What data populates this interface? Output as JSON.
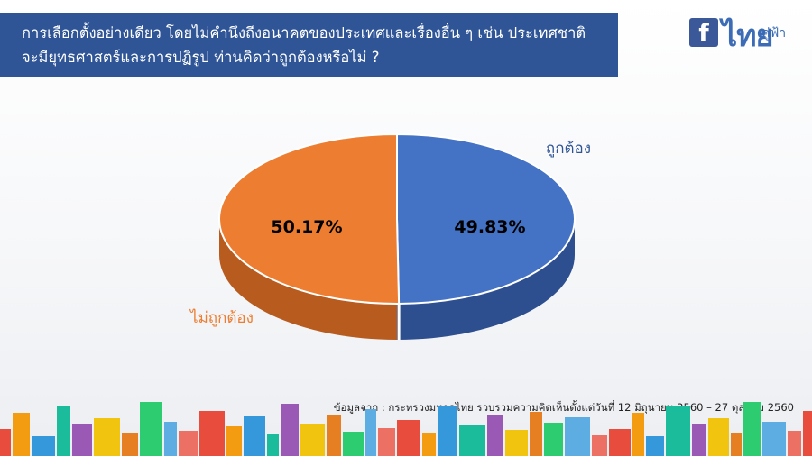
{
  "question": {
    "line1": "การเลือกตั้งอย่างเดียว โดยไม่คำนึงถึงอนาคตของประเทศและเรื่องอื่น ๆ เช่น ประเทศชาติ",
    "line2": "จะมียุทธศาสตร์และการปฏิรูป  ท่านคิดว่าถูกต้องหรือไม่ ?"
  },
  "logo": {
    "fb": "f",
    "name": "ไทย",
    "sub": "คู่ฟ้า"
  },
  "chart_data": {
    "type": "pie",
    "series": [
      {
        "name": "ถูกต้อง",
        "value": 49.83,
        "label": "49.83%",
        "color": "#4472c4",
        "side_color": "#2e4f8f"
      },
      {
        "name": "ไม่ถูกต้อง",
        "value": 50.17,
        "label": "50.17%",
        "color": "#ed7d31",
        "side_color": "#b85b1e"
      }
    ],
    "label_color_right": "#2f5597",
    "label_color_left": "#ed7d31"
  },
  "source": {
    "text": "ข้อมูลจาก : กระทรวงมหาดไทย  รวบรวมความคิดเห็นตั้งแต่วันที่  12 มิถุนายน 2560 – 27 ตุลาคม 2560"
  }
}
